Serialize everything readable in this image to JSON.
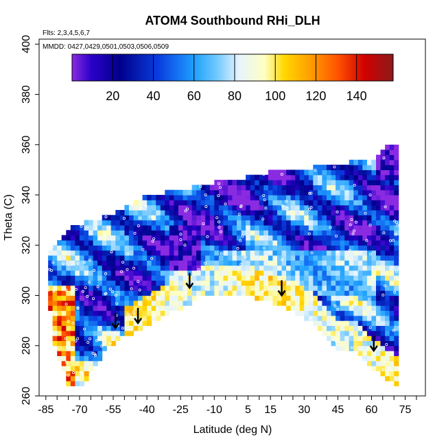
{
  "chart_data": {
    "type": "heatmap",
    "title": "ATOM4 Southbound RHi_DLH",
    "annotations": {
      "flights": "Flts: 2,3,4,5,6,7",
      "dates": "MMDD: 0427,0429,0501,0503,0506,0509"
    },
    "xlabel": "Latitude (deg N)",
    "ylabel": "Theta (C)",
    "xlim": [
      -88,
      84
    ],
    "ylim": [
      260,
      402
    ],
    "xticks": [
      -85,
      -70,
      -55,
      -40,
      -25,
      -10,
      5,
      15,
      30,
      45,
      60,
      75
    ],
    "yticks": [
      260,
      280,
      300,
      320,
      340,
      360,
      380,
      400
    ],
    "colorbar": {
      "range": [
        0,
        158
      ],
      "ticks": [
        20,
        40,
        60,
        80,
        100,
        120,
        140
      ]
    },
    "arrows": [
      {
        "lat": -54,
        "theta": 287
      },
      {
        "lat": -44,
        "theta": 289
      },
      {
        "lat": -21,
        "theta": 303
      },
      {
        "lat": 20,
        "theta": 300
      },
      {
        "lat": 61,
        "theta": 278
      }
    ],
    "colors": {
      "below_range": "#ffffff",
      "sample_markers": "#ffffff"
    }
  }
}
